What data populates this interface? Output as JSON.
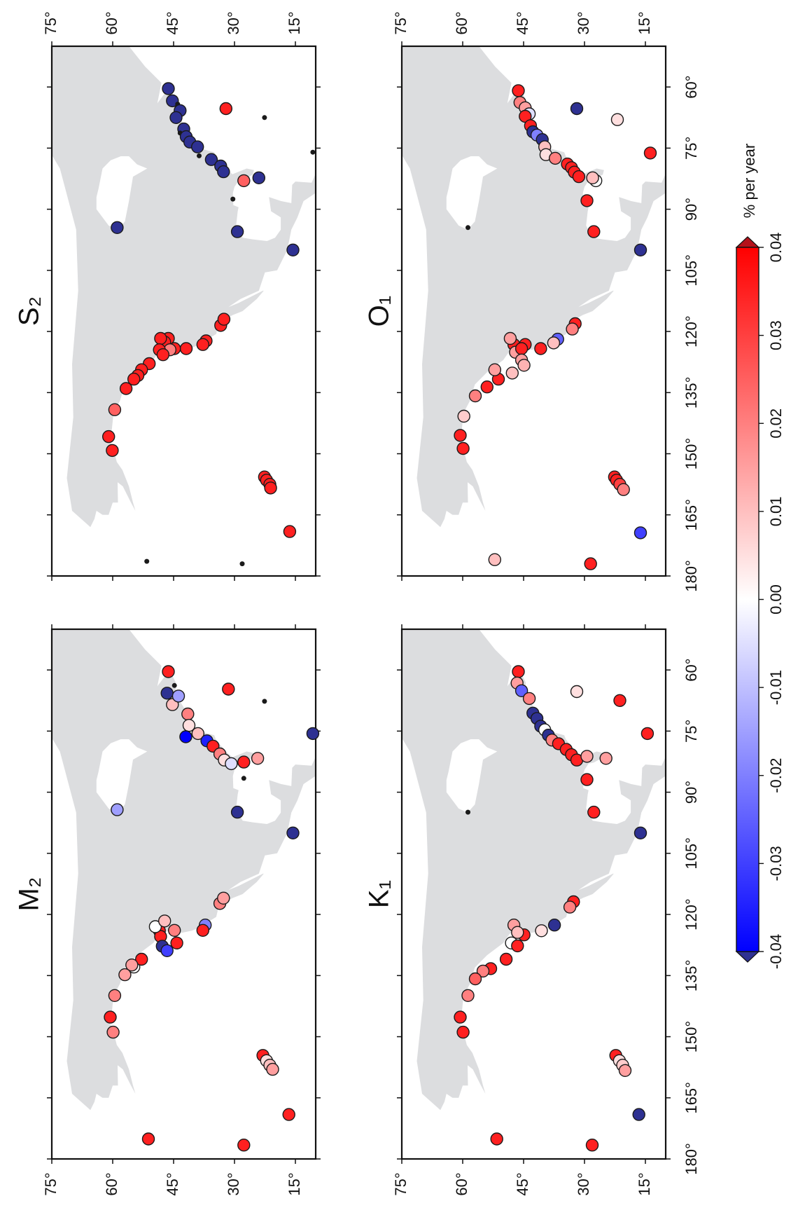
{
  "chart_data": [
    {
      "type": "scatter",
      "title": "M₂",
      "x": [
        60.4,
        65.7,
        68.5,
        66.4,
        63.8,
        70.8,
        73.6,
        76.4,
        75.6,
        77.4,
        78.7,
        80.6,
        82.1,
        83,
        82.6,
        81.7,
        64.7,
        86.6,
        94.9,
        100,
        75.6,
        67.7,
        94.3,
        122.6,
        123.9,
        117.3,
        116,
        127,
        123.9,
        124,
        125.4,
        127.8,
        128.9,
        123,
        121.6,
        132.9,
        131,
        132.4,
        134.8,
        139.9,
        145.2,
        148.9,
        154.6,
        155.9,
        157,
        158,
        169.1,
        175.1,
        176.6
      ],
      "y": [
        46.3,
        46.6,
        45.3,
        43.8,
        44.8,
        41.5,
        41.2,
        42,
        39,
        36.8,
        35.3,
        33.6,
        32.5,
        30.8,
        27.7,
        24.3,
        31.5,
        27.7,
        29.3,
        15.6,
        10.7,
        22.6,
        58.9,
        37.2,
        37.8,
        33.6,
        32.7,
        44.2,
        44.8,
        48.5,
        48.2,
        47.8,
        46.6,
        49.5,
        47.2,
        54.8,
        52.9,
        55.3,
        57,
        59.5,
        60.6,
        59.9,
        23,
        22.1,
        21.3,
        20.6,
        16.6,
        51.2,
        27.7
      ],
      "values": [
        0.035,
        -0.05,
        0.01,
        -0.015,
        null,
        0.02,
        0.005,
        -0.04,
        0.01,
        -0.035,
        0.035,
        0.02,
        0.005,
        -0.005,
        0.035,
        0.015,
        0.035,
        null,
        -0.05,
        -0.05,
        -0.05,
        null,
        -0.015,
        -0.02,
        0.035,
        0.02,
        0.015,
        0.035,
        0.02,
        0.035,
        0.035,
        -0.05,
        -0.03,
        0,
        0.01,
        0,
        0.035,
        0.015,
        0.015,
        0.02,
        0.035,
        0.02,
        0.035,
        0.005,
        0.01,
        0.015,
        0.035,
        0.035,
        0.035
      ],
      "xlim": [
        180,
        50
      ],
      "ylim": [
        10,
        75
      ],
      "xticks": [
        180,
        165,
        150,
        135,
        120,
        105,
        90,
        75,
        60
      ],
      "yticks": [
        {
          "value": 75,
          "label": "75°"
        },
        {
          "value": 60,
          "label": "60°"
        },
        {
          "value": 45,
          "label": "45°"
        },
        {
          "value": 30,
          "label": "30°"
        },
        {
          "value": 15,
          "label": "15°"
        }
      ],
      "land_color": "#dcdddf",
      "missing_color": "#1a1a1a"
    },
    {
      "type": "scatter",
      "title": "S₂",
      "x": [
        60.4,
        63.4,
        64.2,
        65.8,
        67.5,
        70.3,
        71.3,
        72.2,
        73.5,
        74.7,
        76.9,
        77.8,
        79.4,
        80.8,
        83,
        82.3,
        65.3,
        67.5,
        76,
        87.5,
        95.5,
        100,
        94.5,
        118.5,
        117,
        122.3,
        123.2,
        124.2,
        124.2,
        121.7,
        122.6,
        121.7,
        124.5,
        124.5,
        125.7,
        127.9,
        129.4,
        130.8,
        131.7,
        134,
        139.2,
        145.8,
        149.2,
        155.7,
        156.5,
        157.5,
        158.4,
        169.1,
        176.4,
        177
      ],
      "y": [
        46.3,
        45.3,
        44,
        43.4,
        44.4,
        42.5,
        43.4,
        41.9,
        41,
        39.1,
        38.7,
        35.7,
        33.4,
        32.7,
        27.7,
        24,
        32.1,
        22.6,
        10.7,
        30.4,
        29.3,
        15.6,
        58.9,
        33.4,
        32.6,
        37,
        37.8,
        41.9,
        44.8,
        46.3,
        47.2,
        48.2,
        45.9,
        48.5,
        47.6,
        51,
        52.9,
        53.8,
        54.8,
        56.7,
        59.5,
        61,
        60.1,
        22.6,
        22.1,
        21.3,
        21.1,
        16.4,
        51.6,
        28.1
      ],
      "values": [
        -0.05,
        -0.05,
        null,
        -0.05,
        -0.05,
        -0.05,
        null,
        -0.05,
        -0.05,
        -0.05,
        null,
        -0.05,
        -0.05,
        -0.05,
        0.025,
        -0.05,
        0.035,
        null,
        null,
        null,
        -0.05,
        -0.05,
        -0.05,
        0.035,
        0.035,
        0.035,
        0.035,
        0.035,
        0.035,
        0.035,
        0.035,
        0.035,
        0.02,
        0.035,
        0.035,
        0.035,
        0.035,
        0.035,
        0.035,
        0.035,
        0.025,
        0.035,
        0.035,
        0.035,
        0.035,
        0.035,
        0.035,
        0.035,
        null,
        null
      ],
      "xlim": [
        180,
        50
      ],
      "ylim": [
        10,
        75
      ],
      "xticks": [
        180,
        165,
        150,
        135,
        120,
        105,
        90,
        75,
        60
      ],
      "yticks": [
        {
          "value": 75,
          "label": "75°"
        },
        {
          "value": 60,
          "label": "60°"
        },
        {
          "value": 45,
          "label": "45°"
        },
        {
          "value": 30,
          "label": "30°"
        },
        {
          "value": 15,
          "label": "15°"
        }
      ],
      "land_color": "#dcdddf",
      "missing_color": "#1a1a1a"
    },
    {
      "type": "scatter",
      "title": "K₁",
      "x": [
        60.4,
        63.2,
        65.1,
        67,
        70.6,
        71.9,
        73.8,
        74.7,
        76,
        77.2,
        78.1,
        79.5,
        80.8,
        82.1,
        81.2,
        81.7,
        65.3,
        67.5,
        75.6,
        86.9,
        94.9,
        100,
        94.9,
        116.9,
        118.2,
        122.6,
        124,
        125,
        122.6,
        124.4,
        127,
        127.7,
        131,
        133.3,
        133.9,
        135.8,
        139.9,
        145.2,
        148.9,
        154.6,
        155.9,
        157,
        158.3,
        169.1,
        175.1,
        176.6
      ],
      "y": [
        46.3,
        46.6,
        45.5,
        43.6,
        42.7,
        41.7,
        40.8,
        39.8,
        38.9,
        38,
        36.4,
        34.5,
        33.2,
        31.9,
        29.4,
        24.7,
        31.9,
        21.3,
        14.5,
        29.4,
        27.7,
        16.2,
        58.7,
        32.7,
        33.6,
        37.4,
        40.6,
        44.9,
        47.4,
        46.5,
        48,
        46.5,
        49.3,
        53.1,
        55,
        56.9,
        58.7,
        60.6,
        59.9,
        22.3,
        21.4,
        20.6,
        20,
        16.6,
        51.6,
        28.1
      ],
      "values": [
        0.035,
        0.015,
        -0.025,
        0.02,
        -0.05,
        -0.05,
        -0.05,
        0,
        -0.05,
        0.02,
        0.035,
        0.035,
        0.035,
        0.035,
        0.015,
        0.015,
        0.005,
        0.035,
        0.035,
        0.035,
        0.035,
        -0.05,
        null,
        0.035,
        0.02,
        -0.05,
        0.005,
        0.035,
        0.015,
        0.01,
        0,
        0.035,
        0.035,
        0.035,
        0.02,
        0.025,
        0.02,
        0.035,
        0.035,
        0.035,
        0.005,
        0.008,
        0.015,
        -0.05,
        0.035,
        0.035
      ],
      "xlim": [
        180,
        50
      ],
      "ylim": [
        10,
        75
      ],
      "xticks": [
        {
          "value": 180,
          "label": "180°"
        },
        {
          "value": 165,
          "label": "165°"
        },
        {
          "value": 150,
          "label": "150°"
        },
        {
          "value": 135,
          "label": "135°"
        },
        {
          "value": 120,
          "label": "120°"
        },
        {
          "value": 105,
          "label": "105°"
        },
        {
          "value": 90,
          "label": "90°"
        },
        {
          "value": 75,
          "label": "75°"
        },
        {
          "value": 60,
          "label": "60°"
        }
      ],
      "yticks": [
        {
          "value": 75,
          "label": "75°"
        },
        {
          "value": 60,
          "label": "60°"
        },
        {
          "value": 45,
          "label": "45°"
        },
        {
          "value": 30,
          "label": "30°"
        },
        {
          "value": 15,
          "label": "15°"
        }
      ],
      "land_color": "#dcdddf",
      "missing_color": "#1a1a1a"
    },
    {
      "type": "scatter",
      "title": "O₁",
      "x": [
        60.9,
        63.8,
        65.1,
        66.6,
        67.2,
        69.5,
        71,
        71.8,
        72.9,
        74.7,
        76.6,
        77.5,
        78.9,
        79.8,
        80.9,
        82,
        83,
        82.3,
        65.3,
        68,
        76.2,
        87.9,
        95.5,
        100,
        94.5,
        118.1,
        119.4,
        121.9,
        122.8,
        124.2,
        123.2,
        123.2,
        121.7,
        125.1,
        124.2,
        127,
        128.3,
        130.2,
        131.7,
        129.4,
        133.6,
        135.8,
        140.8,
        145.5,
        148.7,
        155.7,
        156.5,
        157.5,
        158.8,
        169.4,
        176,
        177
      ],
      "y": [
        46.3,
        45.9,
        44.6,
        43.6,
        44.6,
        43.3,
        42.7,
        41.7,
        40.4,
        39.8,
        39.5,
        37.2,
        34.2,
        33.2,
        32.5,
        31.4,
        27.2,
        28,
        31.9,
        21.9,
        13.8,
        29.4,
        27.7,
        16.2,
        58.7,
        32.3,
        33,
        36.6,
        37.6,
        40.8,
        44.6,
        47.4,
        48.3,
        47,
        45.5,
        45.5,
        44.9,
        47.8,
        51.2,
        52.1,
        54,
        56.9,
        59.7,
        60.6,
        59.9,
        22.6,
        22.1,
        21.3,
        20.4,
        16.2,
        52.1,
        28.5
      ],
      "values": [
        0.035,
        0.02,
        0.015,
        -0.005,
        0.035,
        0.035,
        -0.05,
        -0.02,
        -0.05,
        0.01,
        0.005,
        0.02,
        0.035,
        0.035,
        0.035,
        0.035,
        0,
        0.01,
        -0.05,
        0.005,
        0.035,
        0.035,
        0.035,
        -0.05,
        null,
        0.035,
        0.02,
        -0.025,
        0.01,
        0.035,
        0.035,
        0.035,
        0.015,
        0.015,
        0.035,
        0.015,
        0.012,
        0.01,
        0.035,
        0.015,
        0.035,
        0.02,
        0.008,
        0.035,
        0.035,
        0.035,
        0.035,
        0.03,
        0.02,
        -0.03,
        0.01,
        0.035
      ],
      "xlim": [
        180,
        50
      ],
      "ylim": [
        10,
        75
      ],
      "xticks": [
        {
          "value": 180,
          "label": "180°"
        },
        {
          "value": 165,
          "label": "165°"
        },
        {
          "value": 150,
          "label": "150°"
        },
        {
          "value": 135,
          "label": "135°"
        },
        {
          "value": 120,
          "label": "120°"
        },
        {
          "value": 105,
          "label": "105°"
        },
        {
          "value": 90,
          "label": "90°"
        },
        {
          "value": 75,
          "label": "75°"
        },
        {
          "value": 60,
          "label": "60°"
        }
      ],
      "yticks": [
        {
          "value": 75,
          "label": "75°"
        },
        {
          "value": 60,
          "label": "60°"
        },
        {
          "value": 45,
          "label": "45°"
        },
        {
          "value": 30,
          "label": "30°"
        },
        {
          "value": 15,
          "label": "15°"
        }
      ],
      "land_color": "#dcdddf",
      "missing_color": "#1a1a1a"
    }
  ],
  "colorbar": {
    "label": "% per year",
    "lim": [
      -0.04,
      0.04
    ],
    "ticks": [
      -0.04,
      -0.03,
      -0.02,
      -0.01,
      {
        "value": 0,
        "label": "0.00"
      },
      0.01,
      0.02,
      0.03,
      0.04
    ],
    "colors": [
      "#0000ff",
      "#ffffff",
      "#ff0000"
    ],
    "under_color": "#2e3192",
    "over_color": "#b5121b"
  }
}
